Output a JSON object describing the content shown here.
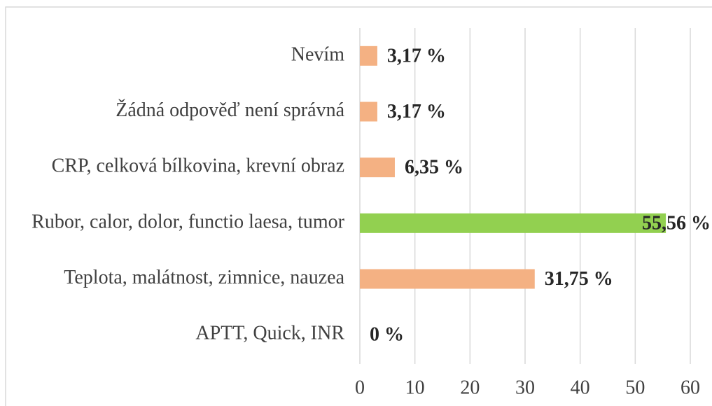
{
  "chart_data": {
    "type": "barh",
    "categories": [
      "Nevím",
      "Žádná odpověď není správná",
      "CRP, celková bílkovina, krevní obraz",
      "Rubor, calor, dolor, functio laesa, tumor",
      "Teplota, malátnost, zimnice, nauzea",
      "APTT, Quick, INR"
    ],
    "values": [
      3.17,
      3.17,
      6.35,
      55.56,
      31.75,
      0
    ],
    "value_labels": [
      "3,17 %",
      "3,17 %",
      "6,35 %",
      "55,56 %",
      "31,75 %",
      "0 %"
    ],
    "colors": [
      "#f4b183",
      "#f4b183",
      "#f4b183",
      "#92d050",
      "#f4b183",
      "#f4b183"
    ],
    "xlim": [
      0,
      60
    ],
    "xticks": [
      0,
      10,
      20,
      30,
      40,
      50,
      60
    ],
    "grid": true
  }
}
